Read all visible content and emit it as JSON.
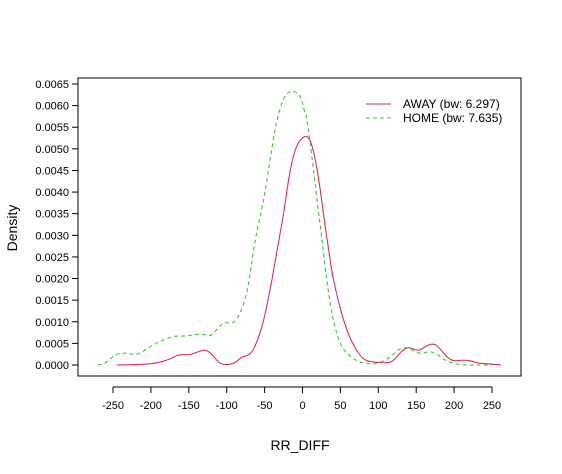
{
  "chart_data": {
    "type": "line",
    "title": "",
    "xlabel": "RR_DIFF",
    "ylabel": "Density",
    "xlim": [
      -280,
      270
    ],
    "ylim": [
      -0.0002,
      0.0066
    ],
    "xticks": [
      "-250",
      "-200",
      "-150",
      "-100",
      "-50",
      "0",
      "50",
      "100",
      "150",
      "200",
      "250"
    ],
    "yticks": [
      "0.0000",
      "0.0005",
      "0.0010",
      "0.0015",
      "0.0020",
      "0.0025",
      "0.0030",
      "0.0035",
      "0.0040",
      "0.0045",
      "0.0050",
      "0.0055",
      "0.0060",
      "0.0065"
    ],
    "grid": false,
    "legend_position": "top-right",
    "series": [
      {
        "name": "AWAY (bw: 6.297)",
        "color": "#df2d4f",
        "dash": "solid",
        "x": [
          -245,
          -220,
          -200,
          -185,
          -175,
          -165,
          -158,
          -150,
          -143,
          -137,
          -130,
          -125,
          -120,
          -115,
          -110,
          -105,
          -100,
          -95,
          -90,
          -85,
          -80,
          -75,
          -70,
          -65,
          -60,
          -55,
          -50,
          -45,
          -40,
          -35,
          -30,
          -25,
          -20,
          -15,
          -10,
          -5,
          0,
          3,
          5,
          8,
          11,
          15,
          20,
          25,
          30,
          35,
          40,
          45,
          50,
          55,
          60,
          65,
          70,
          75,
          80,
          85,
          90,
          100,
          110,
          115,
          120,
          125,
          130,
          135,
          140,
          145,
          150,
          155,
          160,
          165,
          170,
          175,
          180,
          185,
          190,
          195,
          200,
          205,
          210,
          215,
          220,
          225,
          230,
          240,
          250,
          262
        ],
        "values": [
          0.0,
          1e-05,
          3e-05,
          8e-05,
          0.00014,
          0.00022,
          0.00024,
          0.00024,
          0.00027,
          0.00031,
          0.00034,
          0.00032,
          0.00025,
          0.00015,
          6e-05,
          2e-05,
          1e-05,
          2e-05,
          5e-05,
          0.00011,
          0.00018,
          0.00021,
          0.00025,
          0.00035,
          0.00055,
          0.0008,
          0.00113,
          0.00155,
          0.002,
          0.0025,
          0.003,
          0.0035,
          0.0041,
          0.0046,
          0.00495,
          0.00515,
          0.00525,
          0.00528,
          0.00529,
          0.00525,
          0.00515,
          0.0049,
          0.00445,
          0.00385,
          0.0032,
          0.0026,
          0.00205,
          0.00165,
          0.0013,
          0.001,
          0.00075,
          0.00055,
          0.00038,
          0.00025,
          0.00015,
          0.0001,
          8e-05,
          6e-05,
          5e-05,
          6e-05,
          0.00011,
          0.0002,
          0.0003,
          0.00037,
          0.0004,
          0.00038,
          0.00035,
          0.00035,
          0.0004,
          0.00045,
          0.00048,
          0.00047,
          0.0004,
          0.0003,
          0.0002,
          0.00013,
          0.0001,
          0.0001,
          0.00011,
          0.00011,
          0.0001,
          8e-05,
          5e-05,
          3e-05,
          2e-05,
          0.0
        ]
      },
      {
        "name": "HOME (bw: 7.635)",
        "color": "#45c134",
        "dash": "dashed",
        "x": [
          -270,
          -262,
          -255,
          -248,
          -240,
          -232,
          -225,
          -218,
          -210,
          -200,
          -195,
          -188,
          -180,
          -172,
          -165,
          -158,
          -150,
          -143,
          -137,
          -130,
          -125,
          -120,
          -115,
          -110,
          -105,
          -100,
          -95,
          -90,
          -85,
          -80,
          -75,
          -70,
          -65,
          -60,
          -55,
          -50,
          -45,
          -40,
          -35,
          -30,
          -25,
          -20,
          -15,
          -10,
          -5,
          -3,
          0,
          3,
          5,
          10,
          15,
          20,
          25,
          30,
          35,
          40,
          45,
          50,
          55,
          60,
          65,
          70,
          75,
          80,
          85,
          90,
          95,
          100,
          105,
          110,
          115,
          120,
          125,
          130,
          135,
          140,
          145,
          150,
          155,
          160,
          165,
          170,
          175,
          180,
          185,
          190,
          195,
          200,
          205,
          210,
          220,
          230,
          240,
          250
        ],
        "values": [
          0.0,
          3e-05,
          0.00012,
          0.00022,
          0.00027,
          0.00027,
          0.00025,
          0.00025,
          0.00032,
          0.00043,
          0.00048,
          0.00055,
          0.0006,
          0.00065,
          0.00067,
          0.00067,
          0.00068,
          0.0007,
          0.00071,
          0.0007,
          0.00068,
          0.0007,
          0.00078,
          0.00088,
          0.00095,
          0.00098,
          0.00097,
          0.001,
          0.00112,
          0.0013,
          0.00158,
          0.002,
          0.0026,
          0.0031,
          0.0035,
          0.00395,
          0.0045,
          0.00505,
          0.00555,
          0.0059,
          0.00615,
          0.00628,
          0.00633,
          0.00632,
          0.00626,
          0.0062,
          0.00605,
          0.00585,
          0.00575,
          0.00515,
          0.00445,
          0.0037,
          0.003,
          0.00225,
          0.0016,
          0.0011,
          0.00075,
          0.0005,
          0.00035,
          0.00025,
          0.00018,
          0.00012,
          8e-05,
          5e-05,
          3e-05,
          3e-05,
          3e-05,
          5e-05,
          8e-05,
          0.00012,
          0.00018,
          0.00025,
          0.00033,
          0.00038,
          0.0004,
          0.00038,
          0.00034,
          0.0003,
          0.00027,
          0.00028,
          0.0003,
          0.0003,
          0.00027,
          0.00022,
          0.00015,
          0.0001,
          6e-05,
          4e-05,
          2e-05,
          1e-05,
          0.0,
          0.0,
          0.0,
          0.0
        ]
      }
    ]
  }
}
